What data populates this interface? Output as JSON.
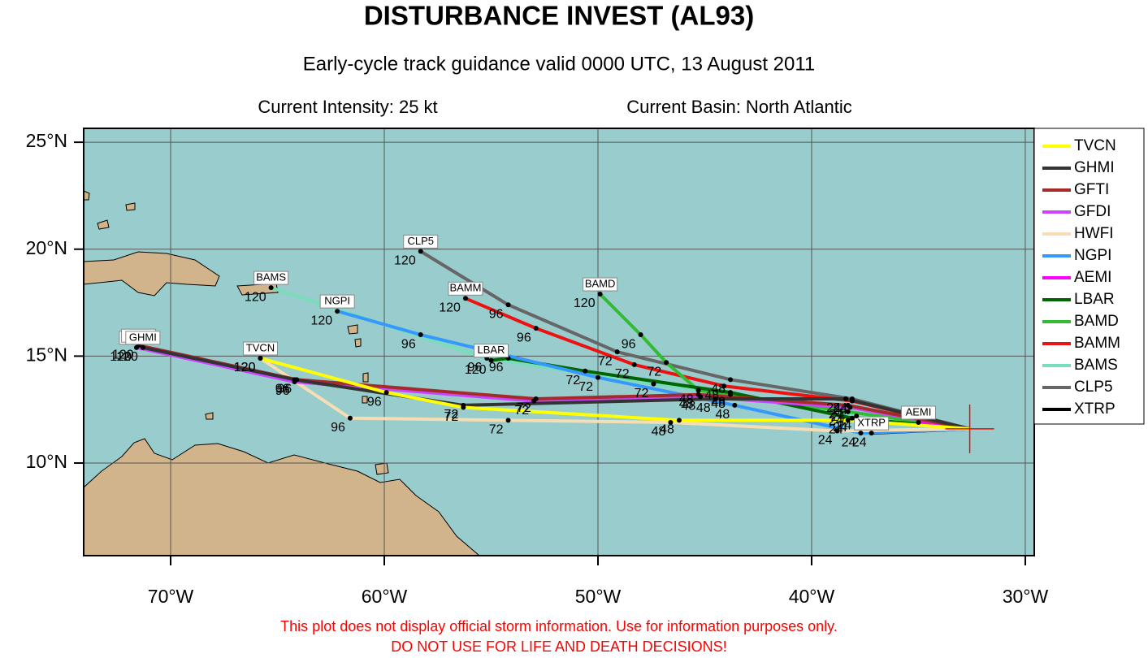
{
  "chart_data": {
    "type": "track",
    "title": "DISTURBANCE INVEST (AL93)",
    "subtitle": "Early-cycle track guidance valid 0000 UTC, 13 August 2011",
    "notes": [
      "Current Intensity: 25 kt",
      "Current Basin: North Atlantic"
    ],
    "disclaimer": [
      "This plot does not display official storm information. Use for information purposes only.",
      "DO NOT USE FOR LIFE AND DEATH DECISIONS!"
    ],
    "xlim": [
      -74.07,
      -29.58
    ],
    "ylim": [
      5.67,
      25.65
    ],
    "xticks": [
      {
        "value": -70,
        "label": "70°W"
      },
      {
        "value": -60,
        "label": "60°W"
      },
      {
        "value": -50,
        "label": "50°W"
      },
      {
        "value": -40,
        "label": "40°W"
      },
      {
        "value": -30,
        "label": "30°W"
      }
    ],
    "yticks": [
      {
        "value": 25,
        "label": "25°N"
      },
      {
        "value": 20,
        "label": "20°N"
      },
      {
        "value": 15,
        "label": "15°N"
      },
      {
        "value": 10,
        "label": "10°N"
      }
    ],
    "grid": true,
    "current": {
      "lon": -32.6,
      "lat": 11.6
    },
    "series": [
      {
        "name": "TVCN",
        "color": "#ffff00",
        "lon": [
          -32.6,
          -38.3,
          -46.2,
          -56.3,
          -59.9,
          -65.8
        ],
        "lat": [
          11.6,
          12.0,
          12.0,
          12.6,
          13.3,
          14.9
        ],
        "labels": [
          null,
          24,
          48,
          72,
          96,
          120
        ]
      },
      {
        "name": "GHMI",
        "color": "#333333",
        "lon": [
          -32.6,
          -38.4,
          -44.5,
          -56.3,
          -64.2,
          -71.3
        ],
        "lat": [
          11.6,
          13.0,
          13.0,
          12.7,
          13.9,
          15.4
        ],
        "labels": [
          null,
          24,
          48,
          72,
          96,
          120
        ]
      },
      {
        "name": "GFTI",
        "color": "#a52a2a",
        "lon": [
          -32.6,
          -38.3,
          -45.3,
          -52.9,
          -64.1,
          -71.5
        ],
        "lat": [
          11.6,
          12.7,
          13.2,
          13.0,
          13.9,
          15.5
        ],
        "labels": [
          null,
          24,
          48,
          72,
          96,
          120
        ]
      },
      {
        "name": "GFDI",
        "color": "#cc44ff",
        "lon": [
          -32.6,
          -38.2,
          -45.2,
          -53.0,
          -64.2,
          -71.6
        ],
        "lat": [
          11.6,
          12.6,
          13.1,
          12.9,
          13.8,
          15.4
        ],
        "labels": [
          null,
          24,
          48,
          72,
          96,
          120
        ]
      },
      {
        "name": "HWFI",
        "color": "#f5deb3",
        "lon": [
          -32.6,
          -38.8,
          -46.6,
          -54.2,
          -61.6,
          -65.8
        ],
        "lat": [
          11.6,
          11.5,
          11.9,
          12.0,
          12.1,
          14.9
        ],
        "labels": [
          null,
          24,
          48,
          72,
          96,
          120
        ]
      },
      {
        "name": "NGPI",
        "color": "#3399ff",
        "lon": [
          -32.6,
          -37.7,
          -43.6,
          -50.0,
          -58.3,
          -62.2
        ],
        "lat": [
          11.6,
          11.4,
          12.7,
          14.0,
          16.0,
          17.1
        ],
        "labels": [
          null,
          24,
          48,
          72,
          96,
          120
        ]
      },
      {
        "name": "AEMI",
        "color": "#ff00ff",
        "lon": [
          -32.6,
          -35.0
        ],
        "lat": [
          11.6,
          11.9
        ],
        "labels": [
          null,
          null
        ]
      },
      {
        "name": "LBAR",
        "color": "#006400",
        "lon": [
          -32.6,
          -38.1,
          -43.8,
          -50.6,
          -54.2,
          -55.0
        ],
        "lat": [
          11.6,
          12.1,
          13.3,
          14.3,
          14.9,
          14.8
        ],
        "labels": [
          null,
          24,
          48,
          72,
          96,
          120
        ]
      },
      {
        "name": "BAMD",
        "color": "#33bb33",
        "lon": [
          -32.6,
          -38.3,
          -45.3,
          -46.8,
          -48.0,
          -49.9
        ],
        "lat": [
          11.6,
          12.4,
          13.4,
          14.7,
          16.0,
          17.9
        ],
        "labels": [
          null,
          24,
          48,
          72,
          96,
          120
        ]
      },
      {
        "name": "BAMM",
        "color": "#ee1111",
        "lon": [
          -32.6,
          -38.1,
          -44.1,
          -48.3,
          -52.9,
          -56.2
        ],
        "lat": [
          11.6,
          12.9,
          13.6,
          14.6,
          16.3,
          17.7
        ],
        "labels": [
          null,
          24,
          48,
          72,
          96,
          120
        ]
      },
      {
        "name": "BAMS",
        "color": "#77ddbb",
        "lon": [
          -32.6,
          -37.9,
          -43.8,
          -47.4,
          -55.2,
          -65.3
        ],
        "lat": [
          11.6,
          12.2,
          13.2,
          13.7,
          14.9,
          18.2
        ],
        "labels": [
          null,
          24,
          48,
          72,
          96,
          120
        ]
      },
      {
        "name": "CLP5",
        "color": "#666666",
        "lon": [
          -32.6,
          -38.1,
          -43.8,
          -49.1,
          -54.2,
          -58.3
        ],
        "lat": [
          11.6,
          13.0,
          13.9,
          15.2,
          17.4,
          19.9
        ],
        "labels": [
          null,
          24,
          48,
          72,
          96,
          120
        ]
      },
      {
        "name": "XTRP",
        "color": "#000000",
        "lon": [
          -32.6,
          -37.2
        ],
        "lat": [
          11.6,
          11.4
        ],
        "labels": [
          null,
          24
        ]
      }
    ]
  }
}
